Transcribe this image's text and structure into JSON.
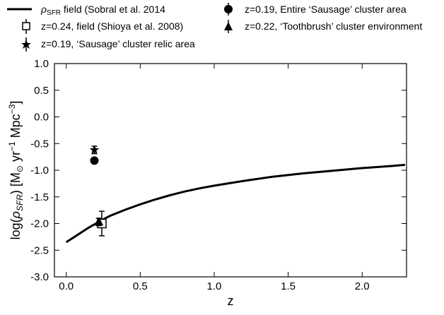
{
  "chart_data": {
    "type": "scatter",
    "title": "",
    "xlabel": "z",
    "ylabel_parts": {
      "lead": "log(",
      "rho": "ρ",
      "rho_sub": "SFR",
      "mid": ") [M",
      "sun": "⊙",
      "after_sun": " yr",
      "exp1": "−1",
      "mpc": " Mpc",
      "exp2": "−3",
      "close": "]"
    },
    "xlim": [
      -0.08,
      2.3
    ],
    "ylim": [
      -3.0,
      1.0
    ],
    "x_ticks": [
      0.0,
      0.5,
      1.0,
      1.5,
      2.0
    ],
    "x_tick_labels": [
      "0.0",
      "0.5",
      "1.0",
      "1.5",
      "2.0"
    ],
    "y_ticks": [
      1.0,
      0.5,
      0.0,
      -0.5,
      -1.0,
      -1.5,
      -2.0,
      -2.5,
      -3.0
    ],
    "y_tick_labels": [
      "1.0",
      "0.5",
      "0.0",
      "-0.5",
      "-1.0",
      "-1.5",
      "-2.0",
      "-2.5",
      "-3.0"
    ],
    "grid": false,
    "legend_position": "top",
    "curve": {
      "label_rho": "ρ",
      "label_sub": "SFR",
      "label_rest": " field (Sobral et al. 2014",
      "color": "#000000",
      "x": [
        0.0,
        0.05,
        0.1,
        0.15,
        0.2,
        0.25,
        0.3,
        0.4,
        0.5,
        0.6,
        0.7,
        0.8,
        0.9,
        1.0,
        1.2,
        1.4,
        1.6,
        1.8,
        2.0,
        2.2,
        2.29
      ],
      "y": [
        -2.35,
        -2.26,
        -2.17,
        -2.08,
        -2.0,
        -1.92,
        -1.85,
        -1.74,
        -1.64,
        -1.55,
        -1.47,
        -1.4,
        -1.34,
        -1.29,
        -1.2,
        -1.12,
        -1.06,
        -1.01,
        -0.96,
        -0.92,
        -0.9
      ]
    },
    "points": [
      {
        "label": "z=0.19, Entire ‘Sausage’ cluster area",
        "marker": "circle",
        "x": 0.19,
        "y": -0.82,
        "yerr": 0.04
      },
      {
        "label": "z=0.24, field (Shioya et al. 2008)",
        "marker": "square-open",
        "x": 0.24,
        "y": -2.0,
        "yerr": 0.23
      },
      {
        "label": "z=0.22, ‘Toothbrush’ cluster environment",
        "marker": "triangle",
        "x": 0.22,
        "y": -1.97,
        "yerr": 0.07
      },
      {
        "label": "z=0.19, ‘Sausage’ cluster relic area",
        "marker": "star",
        "x": 0.19,
        "y": -0.62,
        "yerr": 0.07
      }
    ]
  }
}
